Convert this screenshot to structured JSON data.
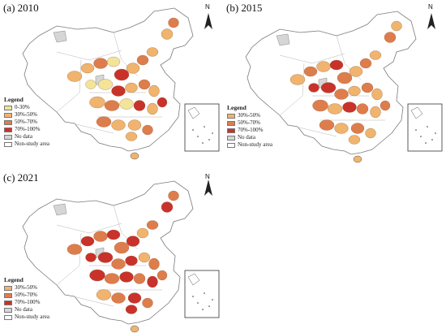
{
  "panels": [
    {
      "label": "(a) 2010",
      "legend_title": "Legend",
      "legend_items": [
        {
          "label": "0-30%",
          "color": "#f3e49a"
        },
        {
          "label": "30%-50%",
          "color": "#f0b46e"
        },
        {
          "label": "50%-70%",
          "color": "#de7d4c"
        },
        {
          "label": "70%-100%",
          "color": "#c9322a"
        },
        {
          "label": "No data",
          "color": "#d6d6d6"
        },
        {
          "label": "Non-study area",
          "color": "#ffffff"
        }
      ],
      "north_label": "N"
    },
    {
      "label": "(b) 2015",
      "legend_title": "Legend",
      "legend_items": [
        {
          "label": "30%-50%",
          "color": "#f0b46e"
        },
        {
          "label": "50%-70%",
          "color": "#de7d4c"
        },
        {
          "label": "70%-100%",
          "color": "#c9322a"
        },
        {
          "label": "No data",
          "color": "#d6d6d6"
        },
        {
          "label": "Non-study area",
          "color": "#ffffff"
        }
      ],
      "north_label": "N"
    },
    {
      "label": "(c) 2021",
      "legend_title": "Legend",
      "legend_items": [
        {
          "label": "30%-50%",
          "color": "#f0b46e"
        },
        {
          "label": "50%-70%",
          "color": "#de7d4c"
        },
        {
          "label": "70%-100%",
          "color": "#c9322a"
        },
        {
          "label": "No data",
          "color": "#d6d6d6"
        },
        {
          "label": "Non-study area",
          "color": "#ffffff"
        }
      ],
      "north_label": "N"
    }
  ]
}
